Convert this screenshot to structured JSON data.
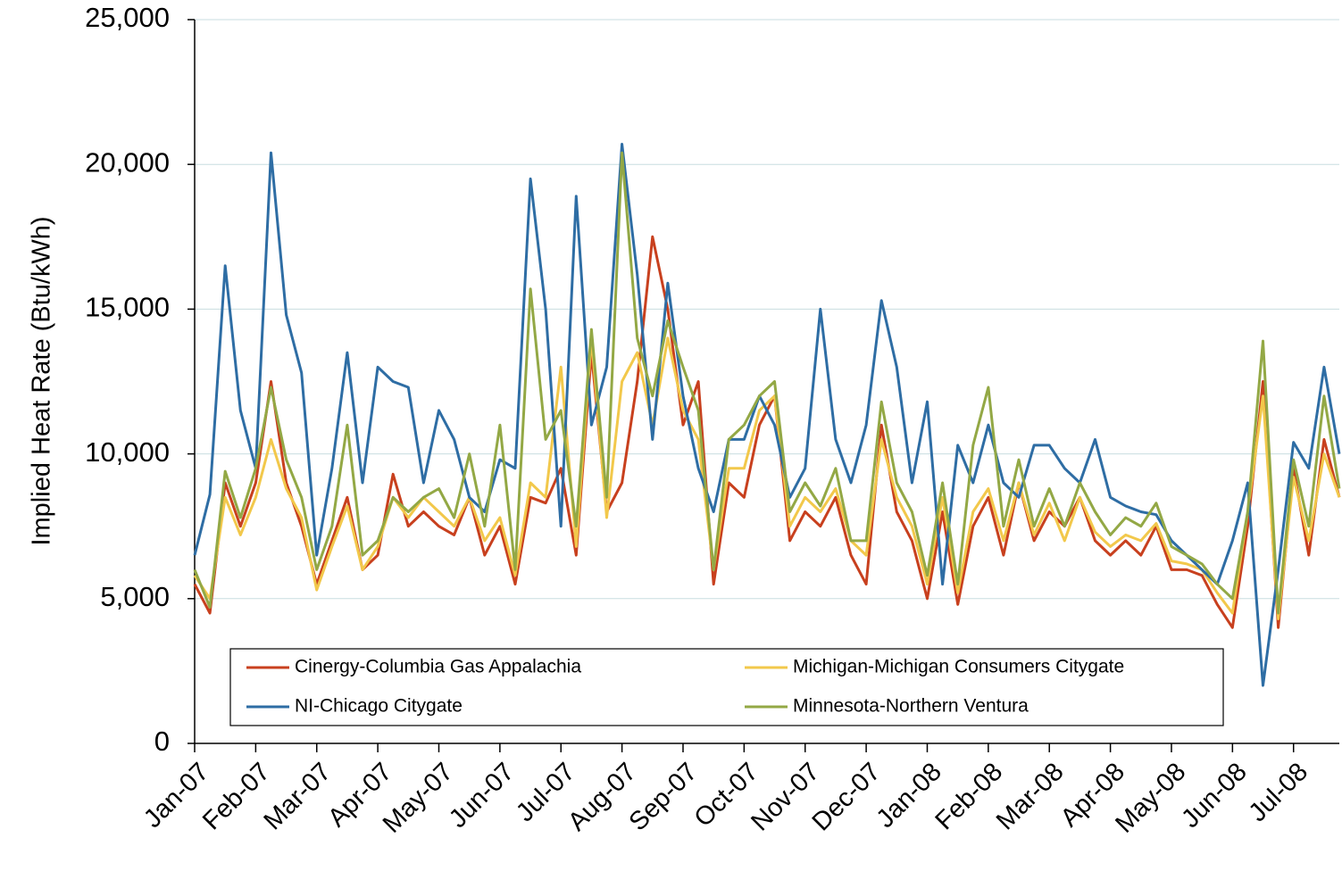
{
  "chart_data": {
    "type": "line",
    "y_label": "Implied Heat Rate (Btu/kWh)",
    "categories": [
      "Jan-07",
      null,
      null,
      null,
      "Feb-07",
      null,
      null,
      null,
      "Mar-07",
      null,
      null,
      null,
      "Apr-07",
      null,
      null,
      null,
      "May-07",
      null,
      null,
      null,
      "Jun-07",
      null,
      null,
      null,
      "Jul-07",
      null,
      null,
      null,
      "Aug-07",
      null,
      null,
      null,
      "Sep-07",
      null,
      null,
      null,
      "Oct-07",
      null,
      null,
      null,
      "Nov-07",
      null,
      null,
      null,
      "Dec-07",
      null,
      null,
      null,
      "Jan-08",
      null,
      null,
      null,
      "Feb-08",
      null,
      null,
      null,
      "Mar-08",
      null,
      null,
      null,
      "Apr-08",
      null,
      null,
      null,
      "May-08",
      null,
      null,
      null,
      "Jun-08",
      null,
      null,
      null,
      "Jul-08",
      null,
      null,
      null
    ],
    "series": [
      {
        "name": "Cinergy-Columbia Gas Appalachia",
        "color": "#c8401e",
        "values": [
          5500,
          4500,
          9000,
          7500,
          9000,
          12500,
          9000,
          7500,
          5500,
          7000,
          8500,
          6000,
          6500,
          9300,
          7500,
          8000,
          7500,
          7200,
          8500,
          6500,
          7500,
          5500,
          8500,
          8300,
          9500,
          6500,
          13500,
          8000,
          9000,
          12500,
          17500,
          15000,
          11000,
          12500,
          5500,
          9000,
          8500,
          11000,
          12000,
          7000,
          8000,
          7500,
          8500,
          6500,
          5500,
          11000,
          8000,
          7000,
          5000,
          8000,
          4800,
          7500,
          8500,
          6500,
          9000,
          7000,
          8000,
          7500,
          8500,
          7000,
          6500,
          7000,
          6500,
          7500,
          6000,
          6000,
          5800,
          4800,
          4000,
          7500,
          12500,
          4000,
          9500,
          6500,
          10500,
          8500
        ]
      },
      {
        "name": "Michigan-Michigan Consumers Citygate",
        "color": "#f2c84b",
        "values": [
          5800,
          5000,
          8500,
          7200,
          8500,
          10500,
          8800,
          7800,
          5300,
          6800,
          8200,
          6000,
          6800,
          8500,
          7800,
          8500,
          8000,
          7500,
          8500,
          7000,
          7800,
          5800,
          9000,
          8500,
          13000,
          6800,
          14000,
          7800,
          12500,
          13500,
          11000,
          14000,
          11500,
          10500,
          6000,
          9500,
          9500,
          11500,
          12000,
          7500,
          8500,
          8000,
          8800,
          7000,
          6500,
          10500,
          8500,
          7500,
          5500,
          8500,
          5200,
          8000,
          8800,
          7000,
          9000,
          7200,
          8300,
          7000,
          8500,
          7300,
          6800,
          7200,
          7000,
          7600,
          6300,
          6200,
          6000,
          5200,
          4500,
          8000,
          12000,
          4300,
          9200,
          7000,
          10000,
          8500
        ]
      },
      {
        "name": "NI-Chicago Citygate",
        "color": "#2e6da4",
        "values": [
          6500,
          8600,
          16500,
          11500,
          9500,
          20400,
          14800,
          12800,
          6500,
          9500,
          13500,
          9000,
          13000,
          12500,
          12300,
          9000,
          11500,
          10500,
          8500,
          8000,
          9800,
          9500,
          19500,
          15000,
          7500,
          18900,
          11000,
          13000,
          20700,
          16200,
          10500,
          15900,
          12000,
          9500,
          8000,
          10500,
          10500,
          12000,
          11000,
          8500,
          9500,
          15000,
          10500,
          9000,
          11000,
          15300,
          13000,
          9000,
          11800,
          5500,
          10300,
          9000,
          11000,
          9000,
          8500,
          10300,
          10300,
          9500,
          9000,
          10500,
          8500,
          8200,
          8000,
          7900,
          7000,
          6500,
          6000,
          5500,
          7000,
          9000,
          2000,
          6000,
          10400,
          9500,
          13000,
          10000
        ]
      },
      {
        "name": "Minnesota-Northern Ventura",
        "color": "#93a845",
        "values": [
          6000,
          4700,
          9400,
          7800,
          9500,
          12300,
          9800,
          8500,
          6000,
          7500,
          11000,
          6500,
          7000,
          8500,
          8000,
          8500,
          8800,
          7800,
          10000,
          7500,
          11000,
          6000,
          15700,
          10500,
          11500,
          7500,
          14300,
          8500,
          20400,
          14000,
          12000,
          14600,
          13000,
          11500,
          6000,
          10500,
          11000,
          12000,
          12500,
          8000,
          9000,
          8200,
          9500,
          7000,
          7000,
          11800,
          9000,
          8000,
          5800,
          9000,
          5500,
          10300,
          12300,
          7500,
          9800,
          7500,
          8800,
          7500,
          9000,
          8000,
          7200,
          7800,
          7500,
          8300,
          6800,
          6500,
          6200,
          5500,
          5000,
          8000,
          13900,
          4500,
          9800,
          7500,
          12000,
          8800
        ]
      }
    ],
    "ylim": [
      0,
      25000
    ],
    "yticks": [
      0,
      {
        "value": 5000,
        "label": "5,000"
      },
      {
        "value": 10000,
        "label": "10,000"
      },
      {
        "value": 15000,
        "label": "15,000"
      },
      {
        "value": 20000,
        "label": "20,000"
      },
      {
        "value": 25000,
        "label": "25,000"
      }
    ],
    "grid": true,
    "legend": "lower-center"
  }
}
